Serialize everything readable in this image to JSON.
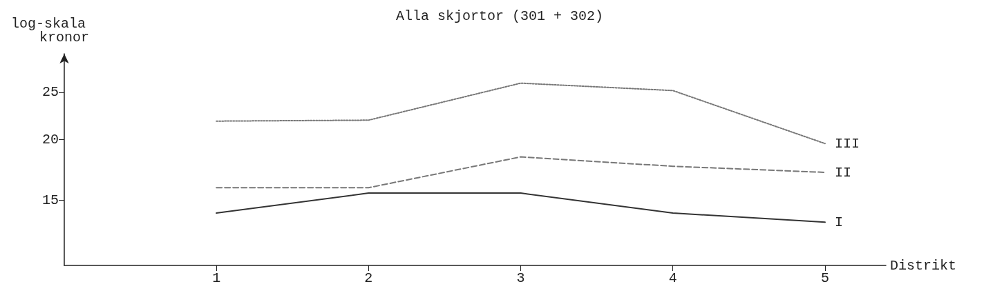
{
  "chart_data": {
    "type": "line",
    "title": "Alla skjortor (301 + 302)",
    "ylabel": "kronor",
    "xlabel": "Distrikt",
    "annotations": [
      "log-skala"
    ],
    "x": [
      1,
      2,
      3,
      4,
      5
    ],
    "xlim": [
      0,
      5.4
    ],
    "xticks": [
      1,
      2,
      3,
      4,
      5
    ],
    "ylim": [
      11,
      30
    ],
    "yticks": [
      15,
      20,
      25
    ],
    "log": "y",
    "grid": false,
    "legend": false,
    "marker": "none",
    "series": [
      {
        "name": "I",
        "color": "#333333",
        "line_style": "solid",
        "values": [
          14.1,
          15.5,
          15.5,
          14.1,
          13.5
        ]
      },
      {
        "name": "II",
        "color": "#777777",
        "line_style": "dashed",
        "values": [
          15.9,
          15.9,
          18.4,
          17.6,
          17.1
        ]
      },
      {
        "name": "III",
        "color": "#777777",
        "line_style": "dotted",
        "values": [
          21.8,
          21.9,
          26.1,
          25.2,
          19.6
        ]
      }
    ]
  }
}
